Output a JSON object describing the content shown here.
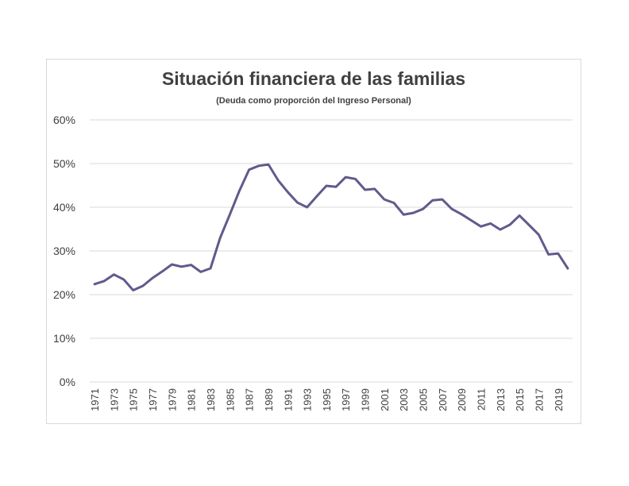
{
  "chart_data": {
    "type": "line",
    "title": "Situación financiera de las familias",
    "subtitle": "(Deuda como proporción del Ingreso Personal)",
    "xlabel": "",
    "ylabel": "",
    "ylim": [
      0,
      0.6
    ],
    "yticks": [
      0,
      0.1,
      0.2,
      0.3,
      0.4,
      0.5,
      0.6
    ],
    "ytick_labels": [
      "0%",
      "10%",
      "20%",
      "30%",
      "40%",
      "50%",
      "60%"
    ],
    "xtick_labels": [
      "1971",
      "1973",
      "1975",
      "1977",
      "1979",
      "1981",
      "1983",
      "1985",
      "1987",
      "1989",
      "1991",
      "1993",
      "1995",
      "1997",
      "1999",
      "2001",
      "2003",
      "2005",
      "2007",
      "2009",
      "2011",
      "2013",
      "2015",
      "2017",
      "2019"
    ],
    "grid": true,
    "line_color": "#5f5b8c",
    "x": [
      1971,
      1972,
      1973,
      1974,
      1975,
      1976,
      1977,
      1978,
      1979,
      1980,
      1981,
      1982,
      1983,
      1984,
      1985,
      1986,
      1987,
      1988,
      1989,
      1990,
      1991,
      1992,
      1993,
      1994,
      1995,
      1996,
      1997,
      1998,
      1999,
      2000,
      2001,
      2002,
      2003,
      2004,
      2005,
      2006,
      2007,
      2008,
      2009,
      2010,
      2011,
      2012,
      2013,
      2014,
      2015,
      2016,
      2017,
      2018,
      2019,
      2020
    ],
    "series": [
      {
        "values": [
          0.224,
          0.231,
          0.246,
          0.235,
          0.21,
          0.22,
          0.238,
          0.253,
          0.269,
          0.264,
          0.268,
          0.252,
          0.26,
          0.33,
          0.383,
          0.438,
          0.486,
          0.495,
          0.498,
          0.462,
          0.435,
          0.411,
          0.4,
          0.425,
          0.449,
          0.447,
          0.469,
          0.465,
          0.44,
          0.442,
          0.418,
          0.41,
          0.383,
          0.387,
          0.396,
          0.416,
          0.418,
          0.396,
          0.384,
          0.37,
          0.356,
          0.363,
          0.349,
          0.36,
          0.381,
          0.359,
          0.337,
          0.292,
          0.294,
          0.26
        ]
      }
    ]
  }
}
